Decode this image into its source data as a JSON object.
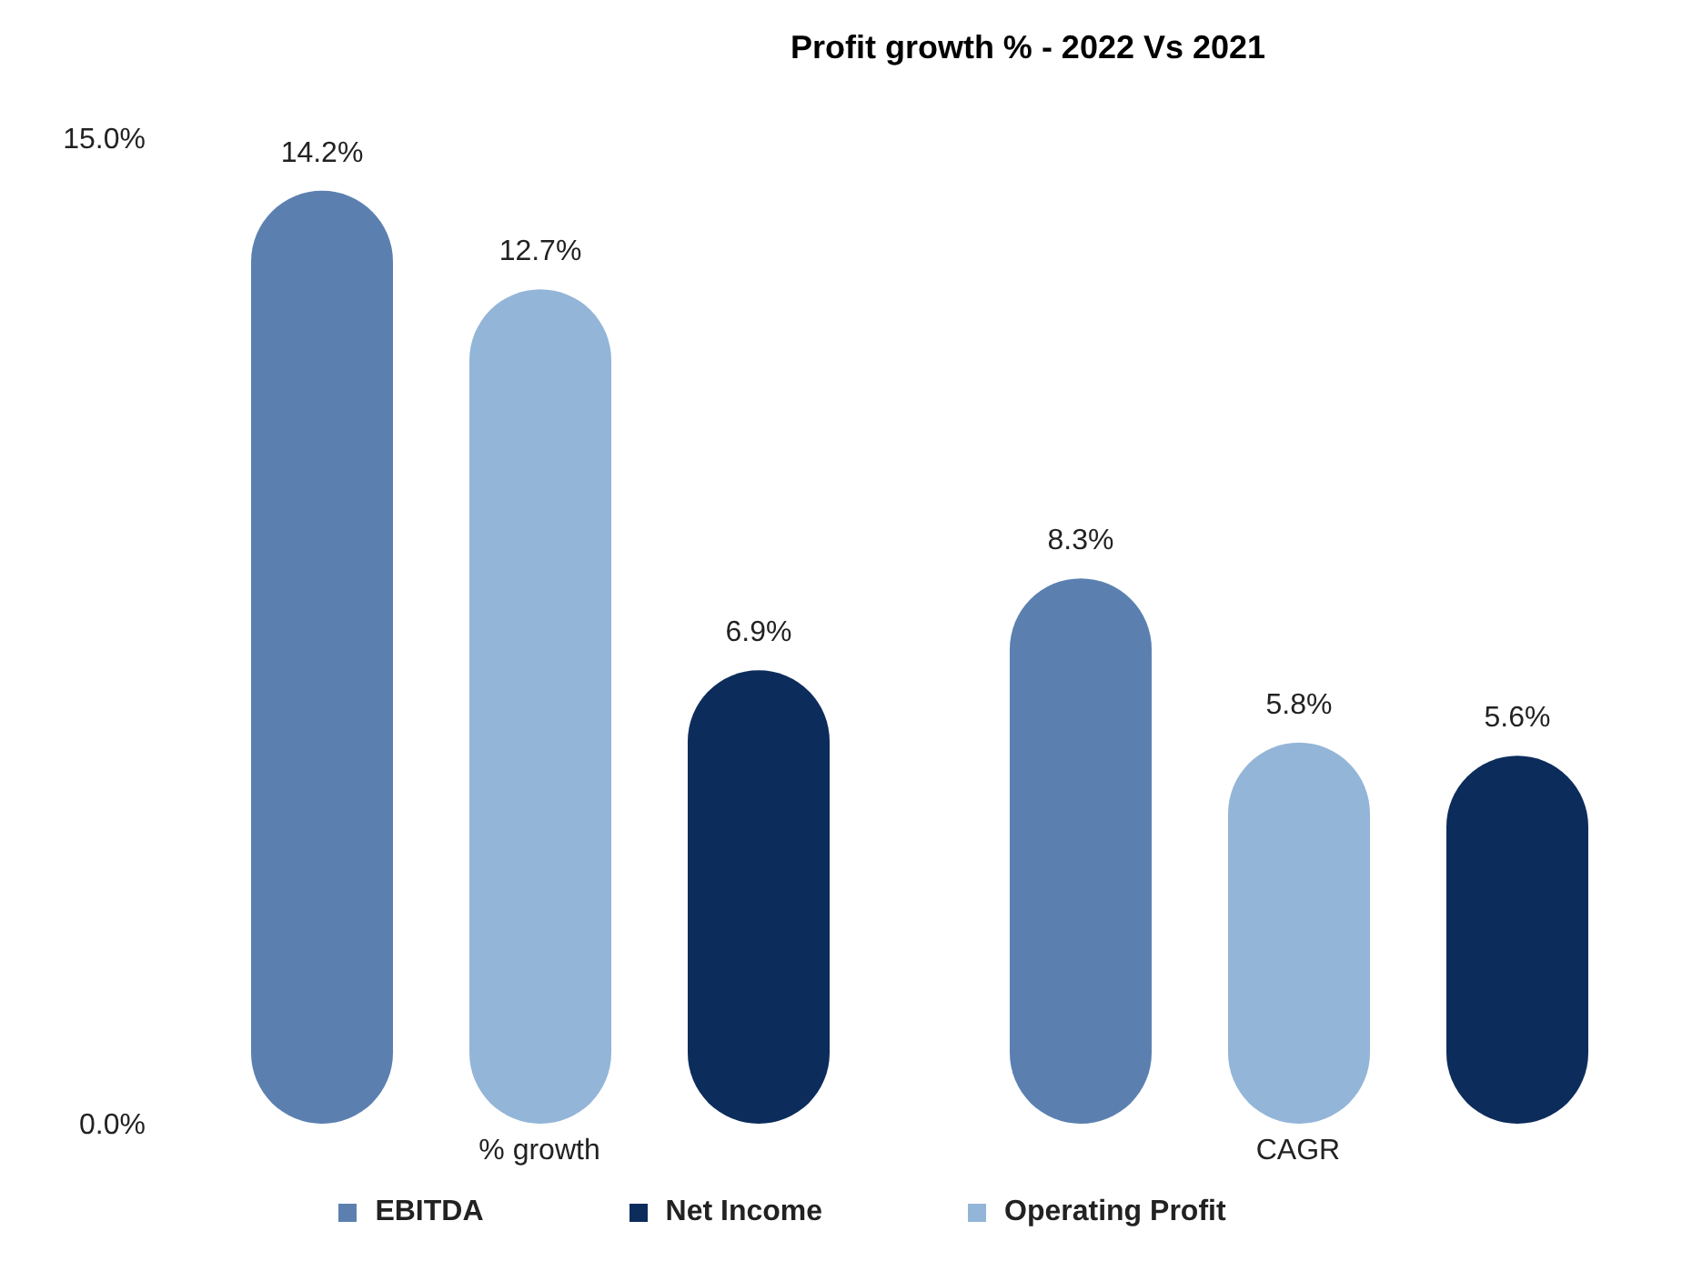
{
  "chart_data": {
    "type": "bar",
    "title": "Profit growth % - 2022 Vs 2021",
    "categories": [
      "% growth",
      "CAGR"
    ],
    "series": [
      {
        "name": "EBITDA",
        "color": "#5b80b0",
        "values": [
          14.2,
          8.3
        ],
        "value_labels": [
          "14.2%",
          "8.3%"
        ]
      },
      {
        "name": "Operating Profit",
        "color": "#93b5d8",
        "values": [
          12.7,
          5.8
        ],
        "value_labels": [
          "12.7%",
          "5.8%"
        ]
      },
      {
        "name": "Net Income",
        "color": "#0c2c5c",
        "values": [
          6.9,
          5.6
        ],
        "value_labels": [
          "6.9%",
          "5.6%"
        ]
      }
    ],
    "ylim": [
      0,
      15
    ],
    "yticks": [
      {
        "value": 0,
        "label": "0.0%"
      },
      {
        "value": 15,
        "label": "15.0%"
      }
    ],
    "grid": false,
    "legend": "bottom"
  }
}
